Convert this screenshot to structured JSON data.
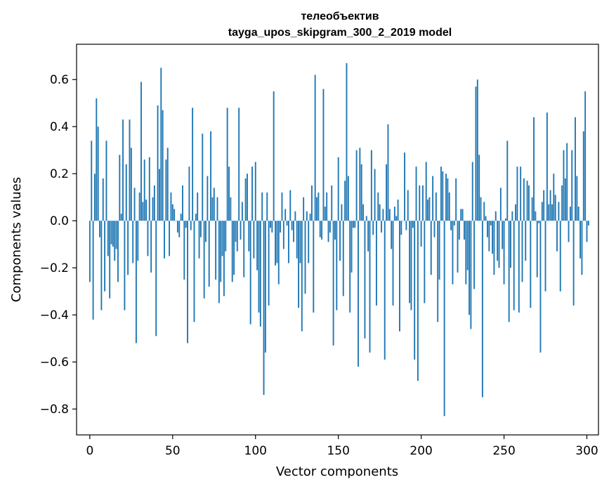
{
  "chart_data": {
    "type": "bar",
    "title": "телеобъектив",
    "subtitle": "tayga_upos_skipgram_300_2_2019 model",
    "xlabel": "Vector components",
    "ylabel": "Components values",
    "xlim": [
      -8,
      307
    ],
    "ylim": [
      -0.91,
      0.75
    ],
    "x_ticks": [
      0,
      50,
      100,
      150,
      200,
      250,
      300
    ],
    "x_tick_labels": [
      "0",
      "50",
      "100",
      "150",
      "200",
      "250",
      "300"
    ],
    "y_ticks": [
      -0.8,
      -0.6,
      -0.4,
      -0.2,
      0.0,
      0.2,
      0.4,
      0.6
    ],
    "y_tick_labels": [
      "−0.8",
      "−0.6",
      "−0.4",
      "−0.2",
      "0.0",
      "0.2",
      "0.4",
      "0.6"
    ],
    "bar_color": "#1f77b4",
    "grid": false,
    "values": [
      -0.26,
      0.34,
      -0.42,
      0.2,
      0.52,
      0.4,
      -0.07,
      -0.38,
      0.18,
      -0.3,
      0.34,
      -0.15,
      -0.33,
      -0.1,
      -0.11,
      -0.17,
      -0.12,
      -0.26,
      0.28,
      0.03,
      0.43,
      -0.38,
      0.24,
      -0.23,
      0.43,
      0.31,
      -0.18,
      0.14,
      -0.52,
      -0.17,
      0.12,
      0.59,
      0.08,
      0.26,
      0.09,
      -0.15,
      0.27,
      -0.22,
      0.1,
      0.15,
      -0.49,
      0.49,
      0.22,
      0.65,
      0.47,
      -0.16,
      0.26,
      0.31,
      -0.15,
      0.12,
      0.07,
      0.05,
      0.0,
      -0.05,
      -0.07,
      0.03,
      0.15,
      -0.25,
      -0.03,
      -0.52,
      0.23,
      -0.04,
      0.48,
      -0.43,
      0.03,
      0.12,
      -0.16,
      -0.07,
      0.37,
      -0.33,
      -0.09,
      0.19,
      -0.28,
      0.38,
      0.1,
      0.14,
      -0.25,
      0.1,
      -0.35,
      -0.26,
      -0.15,
      -0.32,
      -0.13,
      0.48,
      0.23,
      0.1,
      -0.26,
      -0.23,
      -0.09,
      -0.13,
      0.48,
      -0.08,
      0.08,
      -0.24,
      0.18,
      0.2,
      -0.13,
      -0.44,
      0.23,
      -0.16,
      0.25,
      -0.21,
      -0.39,
      -0.45,
      0.12,
      -0.74,
      -0.56,
      0.12,
      -0.36,
      -0.03,
      -0.05,
      0.55,
      -0.19,
      -0.18,
      -0.27,
      -0.05,
      0.12,
      -0.12,
      0.05,
      -0.02,
      -0.18,
      0.13,
      -0.04,
      -0.09,
      0.04,
      -0.16,
      -0.37,
      -0.18,
      -0.47,
      0.1,
      -0.31,
      0.04,
      -0.18,
      0.03,
      0.15,
      -0.39,
      0.62,
      0.1,
      0.12,
      -0.07,
      -0.08,
      0.56,
      0.06,
      0.12,
      -0.09,
      -0.05,
      0.15,
      -0.53,
      -0.08,
      -0.38,
      0.27,
      -0.17,
      0.07,
      -0.32,
      0.17,
      0.67,
      0.19,
      -0.39,
      -0.22,
      -0.03,
      -0.03,
      0.3,
      -0.62,
      0.31,
      0.24,
      0.07,
      -0.5,
      0.02,
      -0.13,
      -0.56,
      0.3,
      -0.06,
      0.22,
      -0.36,
      0.12,
      0.07,
      -0.05,
      0.05,
      -0.59,
      0.24,
      0.41,
      0.05,
      -0.12,
      -0.36,
      0.06,
      0.02,
      0.09,
      -0.47,
      -0.06,
      0.0,
      0.29,
      -0.04,
      0.13,
      -0.35,
      -0.38,
      -0.03,
      -0.59,
      0.23,
      -0.68,
      0.15,
      -0.11,
      0.15,
      -0.35,
      0.25,
      0.09,
      0.1,
      -0.23,
      0.19,
      -0.07,
      0.12,
      -0.43,
      -0.25,
      0.23,
      0.21,
      -0.83,
      0.2,
      0.18,
      0.12,
      -0.04,
      -0.27,
      -0.02,
      0.18,
      -0.22,
      -0.08,
      0.05,
      0.05,
      -0.08,
      -0.27,
      -0.21,
      -0.4,
      -0.46,
      0.25,
      -0.29,
      0.57,
      0.6,
      0.28,
      0.1,
      -0.75,
      0.08,
      0.02,
      -0.07,
      -0.13,
      -0.02,
      -0.14,
      -0.23,
      0.04,
      -0.17,
      -0.2,
      0.14,
      -0.12,
      -0.27,
      0.01,
      0.34,
      -0.43,
      -0.2,
      0.04,
      -0.38,
      0.07,
      0.23,
      -0.39,
      0.23,
      -0.26,
      0.18,
      -0.17,
      0.17,
      0.15,
      -0.37,
      0.1,
      0.44,
      0.04,
      -0.24,
      -0.01,
      -0.56,
      0.08,
      0.13,
      -0.3,
      0.46,
      0.07,
      0.13,
      0.07,
      0.2,
      0.11,
      -0.13,
      0.08,
      -0.3,
      0.15,
      0.3,
      0.18,
      0.33,
      -0.09,
      0.06,
      0.3,
      -0.36,
      0.44,
      0.19,
      0.06,
      -0.16,
      -0.23,
      0.38,
      0.55,
      -0.09,
      -0.02
    ]
  }
}
